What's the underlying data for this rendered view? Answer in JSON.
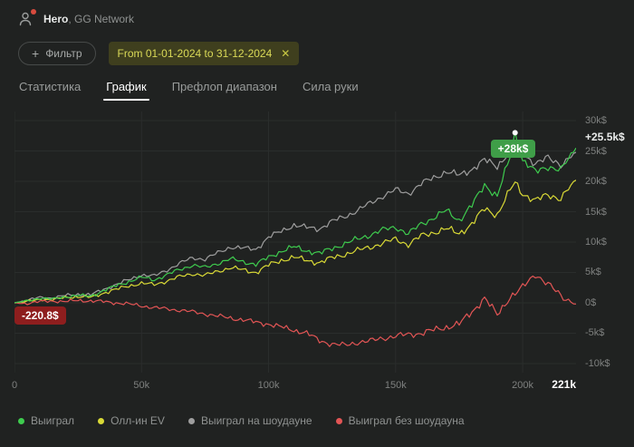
{
  "header": {
    "username": "Hero",
    "network": ", GG Network"
  },
  "filter_bar": {
    "plus_icon": "+",
    "filter_button": "Фильтр",
    "date_range": "From 01-01-2024 to 31-12-2024",
    "close_icon": "✕"
  },
  "tabs": [
    {
      "label": "Статистика",
      "active": false
    },
    {
      "label": "График",
      "active": true
    },
    {
      "label": "Префлоп диапазон",
      "active": false
    },
    {
      "label": "Сила руки",
      "active": false
    }
  ],
  "chart_data": {
    "type": "line",
    "title": "",
    "xlabel": "hands",
    "ylabel": "winnings ($)",
    "grid": true,
    "legend_position": "bottom",
    "xlim": [
      0,
      221
    ],
    "ylim": [
      -10,
      30
    ],
    "units": "thousands",
    "x_ticks": [
      {
        "label": "0",
        "value": 0
      },
      {
        "label": "50k",
        "value": 50
      },
      {
        "label": "100k",
        "value": 100
      },
      {
        "label": "150k",
        "value": 150
      },
      {
        "label": "200k",
        "value": 200
      }
    ],
    "x_end": {
      "label": "221k",
      "value": 221
    },
    "y_ticks": [
      {
        "label": "30k$",
        "value": 30
      },
      {
        "label": "25k$",
        "value": 25
      },
      {
        "label": "20k$",
        "value": 20
      },
      {
        "label": "15k$",
        "value": 15
      },
      {
        "label": "10k$",
        "value": 10
      },
      {
        "label": "5k$",
        "value": 5
      },
      {
        "label": "0$",
        "value": 0
      },
      {
        "label": "-5k$",
        "value": -5
      },
      {
        "label": "-10k$",
        "value": -10
      }
    ],
    "x": [
      0,
      5,
      10,
      15,
      20,
      25,
      30,
      35,
      40,
      45,
      50,
      55,
      60,
      65,
      70,
      75,
      80,
      85,
      90,
      95,
      100,
      105,
      110,
      115,
      120,
      125,
      130,
      135,
      140,
      145,
      150,
      155,
      160,
      165,
      170,
      175,
      180,
      185,
      190,
      195,
      197,
      200,
      205,
      210,
      215,
      221
    ],
    "series": [
      {
        "name": "Выиграл",
        "color": "#3ecb4e",
        "values": [
          0,
          0.3,
          0.8,
          0.6,
          1,
          1.2,
          1.1,
          2,
          2.8,
          3.5,
          4.2,
          3.8,
          4.6,
          5.5,
          6.2,
          5.8,
          6.5,
          7.2,
          6.8,
          6.3,
          7.5,
          8.5,
          9.2,
          8.6,
          8.1,
          9,
          9.7,
          10.5,
          11.2,
          12,
          12.5,
          11.3,
          13,
          14,
          15.2,
          13.6,
          16,
          19.5,
          17.5,
          24,
          28,
          23.5,
          21.5,
          22.5,
          21.8,
          25.5
        ]
      },
      {
        "name": "Олл-ин EV",
        "color": "#d9d936",
        "values": [
          0,
          0.2,
          0.6,
          0.5,
          0.9,
          1,
          0.9,
          1.6,
          2.2,
          2.8,
          3.2,
          3,
          3.6,
          4.3,
          4.8,
          4.5,
          5.2,
          5.8,
          5.4,
          5,
          6.2,
          7,
          7.5,
          7,
          6.6,
          7.4,
          8,
          8.6,
          9.2,
          9.8,
          10.5,
          9.6,
          11,
          11.6,
          12.2,
          11.4,
          13,
          15.5,
          14.5,
          18.5,
          19.8,
          18,
          16.8,
          17.8,
          17.2,
          20.2
        ]
      },
      {
        "name": "Выиграл на шоудауне",
        "color": "#9e9e9e",
        "values": [
          0,
          0.4,
          0.9,
          0.8,
          1.2,
          1.4,
          1.3,
          2.2,
          3,
          3.8,
          4.6,
          4.4,
          5.4,
          6.5,
          7.4,
          7.2,
          8.2,
          9.2,
          9,
          8.8,
          10.8,
          11.8,
          12.8,
          12.4,
          12.2,
          13.4,
          14.2,
          15.2,
          16.4,
          17.6,
          18.6,
          18,
          19.6,
          20.6,
          21.6,
          21,
          22,
          23.5,
          22.5,
          25,
          26.5,
          24.5,
          23,
          23.8,
          22.8,
          24.8
        ]
      },
      {
        "name": "Выиграл без шоудауна",
        "color": "#e25555",
        "values": [
          0,
          -0.1,
          0.2,
          0.3,
          0.2,
          0.4,
          0.3,
          0.2,
          0,
          -0.2,
          -0.5,
          -0.8,
          -1,
          -1.2,
          -1.5,
          -1.8,
          -2.2,
          -2.5,
          -2.8,
          -3.2,
          -3.5,
          -4,
          -4.5,
          -5,
          -6.2,
          -6.8,
          -7,
          -6.5,
          -6.3,
          -5.8,
          -5.5,
          -5.2,
          -5,
          -4.5,
          -4,
          -3.5,
          -1.5,
          0.8,
          -2,
          1,
          1.5,
          2.5,
          4.8,
          3,
          1.2,
          -0.2
        ]
      }
    ],
    "annotations": {
      "peak_badge": {
        "text": "+28k$",
        "x": 197,
        "y": 28
      },
      "end_value_label": {
        "text": "+25.5k$",
        "y": 25.5
      },
      "start_badge": {
        "text": "-220.8$",
        "x": 0,
        "y": -2.3
      }
    }
  },
  "legend": [
    {
      "label": "Выиграл",
      "color": "#3ecb4e"
    },
    {
      "label": "Олл-ин EV",
      "color": "#d9d936"
    },
    {
      "label": "Выиграл на шоудауне",
      "color": "#9e9e9e"
    },
    {
      "label": "Выиграл без шоудауна",
      "color": "#e25555"
    }
  ]
}
